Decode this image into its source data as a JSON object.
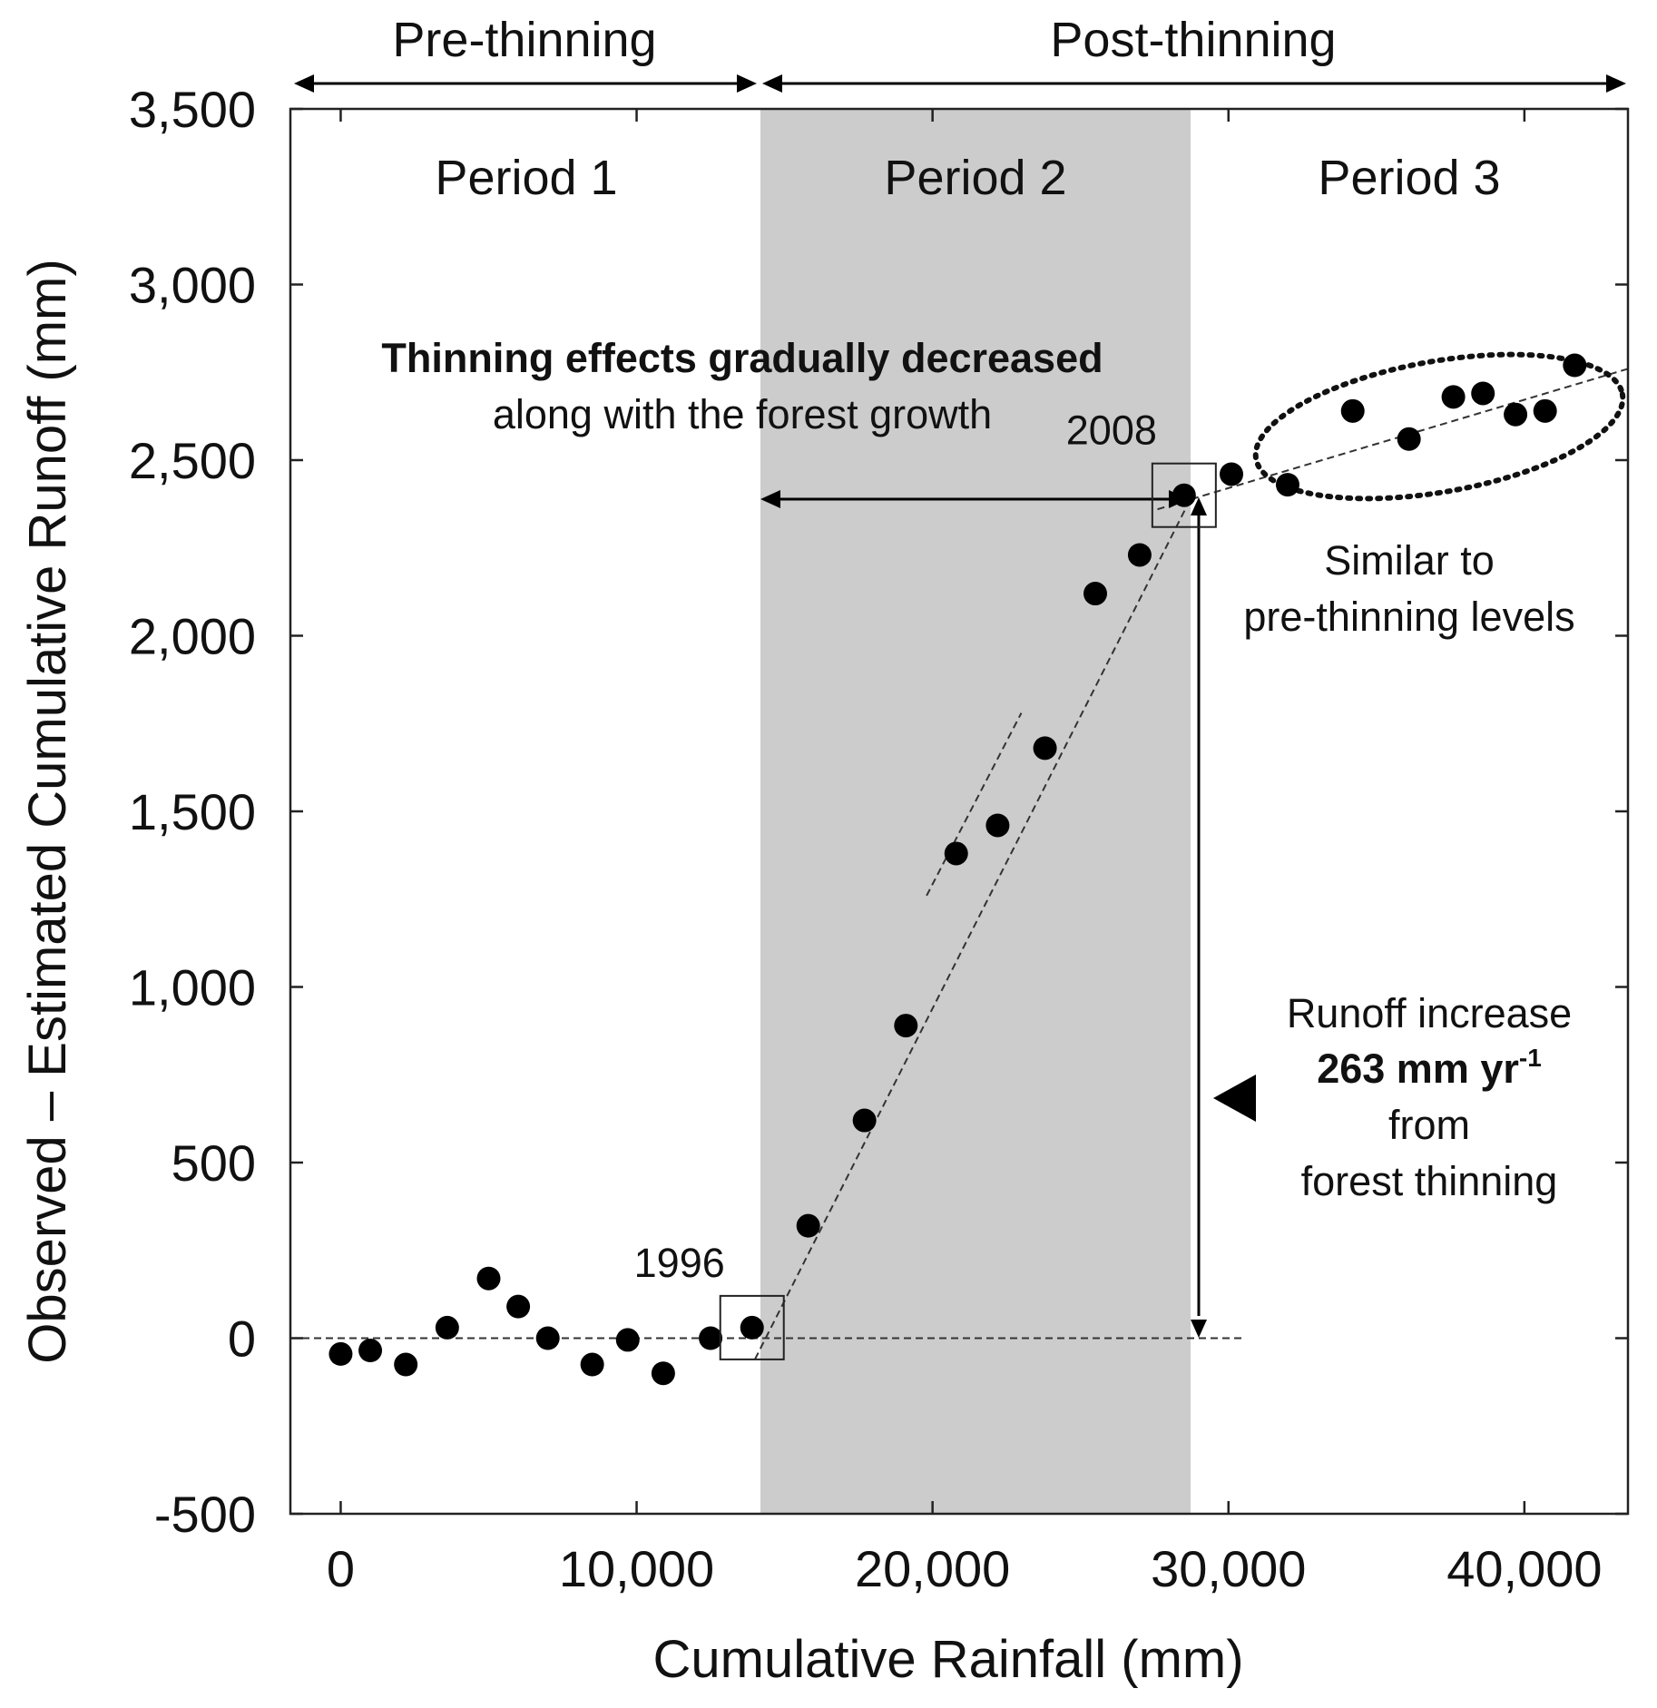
{
  "chart_data": {
    "type": "scatter",
    "title": "",
    "xlabel": "Cumulative Rainfall (mm)",
    "ylabel": "Observed – Estimated Cumulative Runoff (mm)",
    "xlim": [
      -1700,
      43500
    ],
    "ylim": [
      -500,
      3500
    ],
    "x_ticks": [
      0,
      10000,
      20000,
      30000,
      40000
    ],
    "x_tick_labels": [
      "0",
      "10,000",
      "20,000",
      "30,000",
      "40,000"
    ],
    "y_ticks": [
      -500,
      0,
      500,
      1000,
      1500,
      2000,
      2500,
      3000,
      3500
    ],
    "y_tick_labels": [
      "-500",
      "0",
      "500",
      "1,000",
      "1,500",
      "2,000",
      "2,500",
      "3,000",
      "3,500"
    ],
    "grid": false,
    "periods": [
      {
        "label": "Period 1",
        "x_start": -1700,
        "x_end": 14200,
        "shaded": false
      },
      {
        "label": "Period 2",
        "x_start": 14200,
        "x_end": 28800,
        "shaded": true,
        "color": "#cccccc"
      },
      {
        "label": "Period 3",
        "x_start": 28800,
        "x_end": 43500,
        "shaded": false
      }
    ],
    "phases": [
      {
        "label": "Pre-thinning",
        "x_start": -1700,
        "x_end": 14200
      },
      {
        "label": "Post-thinning",
        "x_start": 14200,
        "x_end": 43500
      }
    ],
    "series": [
      {
        "name": "Observed – Estimated",
        "color": "#000000",
        "points": [
          {
            "x": 0,
            "y": -45
          },
          {
            "x": 1000,
            "y": -35
          },
          {
            "x": 2200,
            "y": -75
          },
          {
            "x": 3600,
            "y": 30
          },
          {
            "x": 5000,
            "y": 170
          },
          {
            "x": 6000,
            "y": 90
          },
          {
            "x": 7000,
            "y": 0
          },
          {
            "x": 8500,
            "y": -75
          },
          {
            "x": 9700,
            "y": -5
          },
          {
            "x": 10900,
            "y": -100
          },
          {
            "x": 12500,
            "y": 0
          },
          {
            "x": 13900,
            "y": 30
          },
          {
            "x": 15800,
            "y": 320
          },
          {
            "x": 17700,
            "y": 620
          },
          {
            "x": 19100,
            "y": 890
          },
          {
            "x": 20800,
            "y": 1380
          },
          {
            "x": 22200,
            "y": 1460
          },
          {
            "x": 23800,
            "y": 1680
          },
          {
            "x": 25500,
            "y": 2120
          },
          {
            "x": 27000,
            "y": 2230
          },
          {
            "x": 28500,
            "y": 2400
          },
          {
            "x": 30100,
            "y": 2460
          },
          {
            "x": 32000,
            "y": 2430
          },
          {
            "x": 34200,
            "y": 2640
          },
          {
            "x": 36100,
            "y": 2560
          },
          {
            "x": 37600,
            "y": 2680
          },
          {
            "x": 38600,
            "y": 2690
          },
          {
            "x": 39700,
            "y": 2630
          },
          {
            "x": 40700,
            "y": 2640
          },
          {
            "x": 41700,
            "y": 2770
          }
        ]
      }
    ],
    "trend_lines": [
      {
        "name": "pre-thinning baseline",
        "x": [
          -1700,
          30500
        ],
        "y": [
          0,
          0
        ]
      },
      {
        "name": "period 2 trend",
        "x": [
          14000,
          28600
        ],
        "y": [
          -60,
          2370
        ]
      },
      {
        "name": "period 2 sub-trend",
        "x": [
          19800,
          23000
        ],
        "y": [
          1260,
          1780
        ]
      },
      {
        "name": "period 3 trend",
        "x": [
          27600,
          43500
        ],
        "y": [
          2360,
          2760
        ]
      }
    ],
    "highlighted_points": [
      {
        "label": "1996",
        "x": 13900,
        "y": 30
      },
      {
        "label": "2008",
        "x": 28500,
        "y": 2400
      }
    ],
    "annotations": {
      "thinning_title": "Thinning effects gradually decreased",
      "thinning_sub": "along with the forest growth",
      "similar_line1": "Similar to",
      "similar_line2": "pre-thinning levels",
      "runoff_line1": "Runoff increase",
      "runoff_value": "263 mm yr",
      "runoff_exp": "-1",
      "runoff_line3": "from",
      "runoff_line4": "forest thinning"
    }
  }
}
